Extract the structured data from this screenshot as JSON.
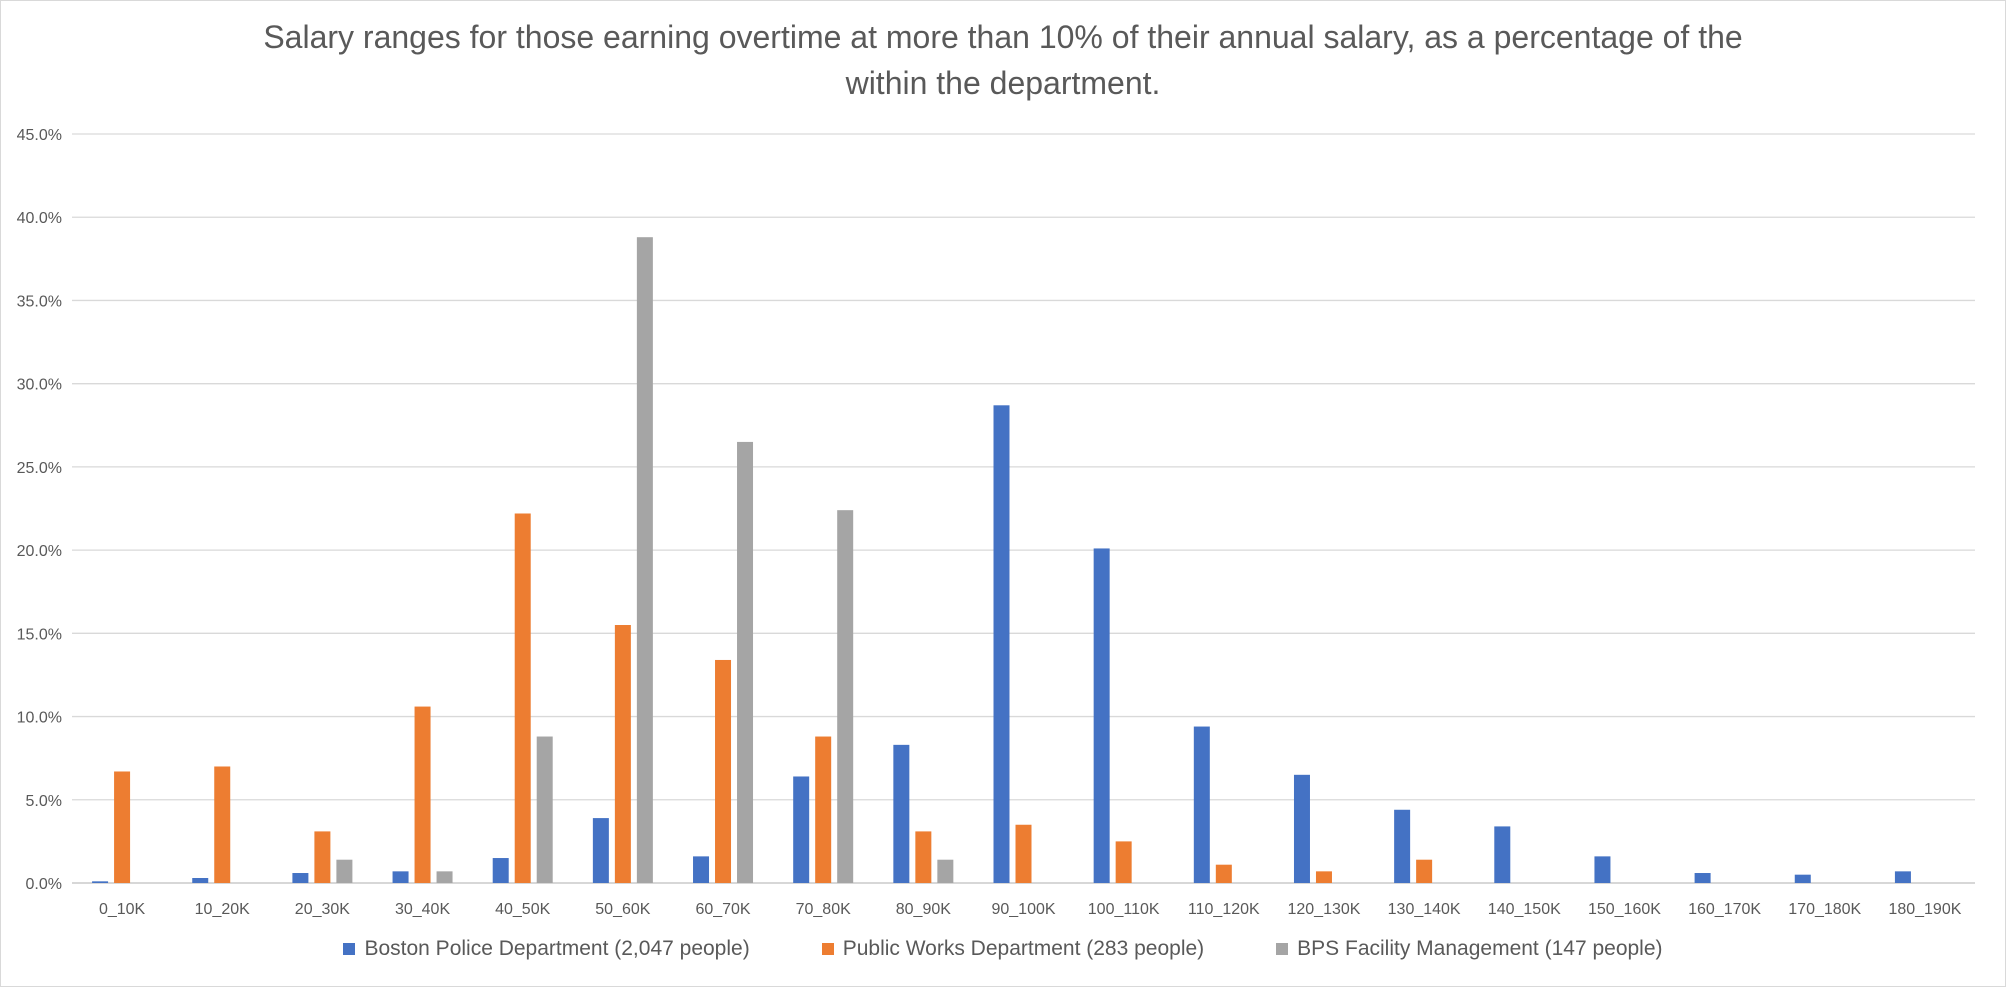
{
  "chart_data": {
    "type": "bar",
    "title_line1": "Salary ranges for those earning overtime at more than 10% of their annual salary, as a percentage of the",
    "title_line2": "within the department.",
    "xlabel": "",
    "ylabel": "",
    "ylim": [
      0,
      45
    ],
    "yticks": [
      "0.0%",
      "5.0%",
      "10.0%",
      "15.0%",
      "20.0%",
      "25.0%",
      "30.0%",
      "35.0%",
      "40.0%",
      "45.0%"
    ],
    "grid": true,
    "legend_position": "bottom",
    "categories": [
      "0_10K",
      "10_20K",
      "20_30K",
      "30_40K",
      "40_50K",
      "50_60K",
      "60_70K",
      "70_80K",
      "80_90K",
      "90_100K",
      "100_110K",
      "110_120K",
      "120_130K",
      "130_140K",
      "140_150K",
      "150_160K",
      "160_170K",
      "170_180K",
      "180_190K"
    ],
    "series": [
      {
        "name": "Boston Police Department (2,047 people)",
        "color": "#4472c4",
        "values": [
          0.1,
          0.3,
          0.6,
          0.7,
          1.5,
          3.9,
          1.6,
          6.4,
          8.3,
          28.7,
          20.1,
          9.4,
          6.5,
          4.4,
          3.4,
          1.6,
          0.6,
          0.5,
          0.7
        ]
      },
      {
        "name": "Public Works Department (283 people)",
        "color": "#ed7d31",
        "values": [
          6.7,
          7.0,
          3.1,
          10.6,
          22.2,
          15.5,
          13.4,
          8.8,
          3.1,
          3.5,
          2.5,
          1.1,
          0.7,
          1.4,
          0,
          0,
          0,
          0,
          0
        ]
      },
      {
        "name": "BPS Facility Management (147 people)",
        "color": "#a5a5a5",
        "values": [
          0,
          0,
          1.4,
          0.7,
          8.8,
          38.8,
          26.5,
          22.4,
          1.4,
          0,
          0,
          0,
          0,
          0,
          0,
          0,
          0,
          0,
          0
        ]
      }
    ]
  }
}
